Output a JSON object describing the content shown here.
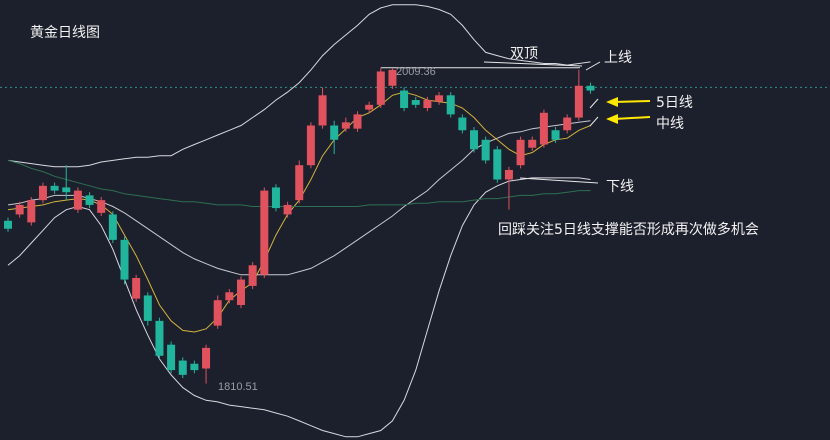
{
  "chart_data": {
    "type": "candlestick",
    "title": "黄金日线图",
    "annotations": {
      "double_top": "双顶",
      "note": "回踩关注5日线支撑能否形成再次做多机会"
    },
    "up_color": "#e0525e",
    "down_color": "#22b59e",
    "ylim": [
      1775,
      2052
    ],
    "price_line": 1997,
    "candles": {
      "open": [
        1913,
        1917,
        1912,
        1926,
        1935,
        1934,
        1920,
        1929,
        1918,
        1917,
        1901,
        1864,
        1866,
        1850,
        1835,
        1825,
        1823,
        1820,
        1847,
        1863,
        1860,
        1872,
        1879,
        1934,
        1917,
        1926,
        1948,
        1973,
        1973,
        1971,
        1971,
        1983,
        1986,
        1998,
        1995,
        1989,
        1984,
        1988,
        1992,
        1978,
        1970,
        1964,
        1958,
        1939,
        1948,
        1959,
        1961,
        1970,
        1970,
        1978,
        1998
      ],
      "high": [
        1915,
        1925,
        1928,
        1937,
        1937,
        1948,
        1934,
        1931,
        1928,
        1919,
        1903,
        1879,
        1868,
        1852,
        1837,
        1827,
        1825,
        1835,
        1866,
        1870,
        1878,
        1887,
        1934,
        1936,
        1925,
        1951,
        1975,
        1997,
        1976,
        1978,
        1982,
        1988,
        2009.36,
        2009,
        1997,
        1991,
        1991,
        1994,
        1994,
        1980,
        1972,
        1966,
        1960,
        1947,
        1966,
        1966,
        1983,
        1972,
        1980,
        2008,
        2000
      ],
      "low": [
        1906,
        1915,
        1910,
        1924,
        1930,
        1926,
        1918,
        1921,
        1916,
        1899,
        1873,
        1862,
        1847,
        1826,
        1817,
        1814,
        1817,
        1810.51,
        1845,
        1861,
        1858,
        1870,
        1877,
        1919,
        1915,
        1924,
        1946,
        1971,
        1955,
        1969,
        1969,
        1981,
        1984,
        1996,
        1982,
        1984,
        1982,
        1986,
        1978,
        1968,
        1956,
        1949,
        1937,
        1920,
        1946,
        1957,
        1959,
        1962,
        1968,
        1976,
        1993
      ],
      "close": [
        1908,
        1923,
        1926,
        1935,
        1932,
        1931,
        1932,
        1923,
        1926,
        1901,
        1876,
        1877,
        1850,
        1828,
        1819,
        1816,
        1819,
        1833,
        1863,
        1868,
        1876,
        1885,
        1932,
        1921,
        1923,
        1948,
        1973,
        1992,
        1964,
        1975,
        1980,
        1986,
        2007,
        2008,
        1984,
        1986,
        1989,
        1992,
        1980,
        1970,
        1958,
        1951,
        1939,
        1945,
        1964,
        1964,
        1981,
        1964,
        1978,
        1998,
        1995
      ]
    },
    "series": [
      {
        "name": "上线",
        "color": "#d8d8e0",
        "values": [
          1951,
          1950,
          1949,
          1948,
          1947,
          1947,
          1947,
          1948,
          1950,
          1951,
          1952,
          1953,
          1953,
          1954,
          1954,
          1958,
          1961,
          1964,
          1967,
          1970,
          1973,
          1978,
          1983,
          1989,
          1994,
          2000,
          2008,
          2017,
          2024,
          2030,
          2036,
          2043,
          2047,
          2049,
          2049,
          2049,
          2048,
          2046,
          2043,
          2036,
          2027,
          2019,
          2017,
          2015,
          2014,
          2013,
          2012,
          2012,
          2011,
          2012,
          2013
        ]
      },
      {
        "name": "中线",
        "color": "#c8c8d0",
        "values": [
          1923,
          1924,
          1926,
          1927,
          1929,
          1929,
          1929,
          1927,
          1925,
          1922,
          1918,
          1913,
          1908,
          1903,
          1898,
          1893,
          1889,
          1886,
          1883,
          1881,
          1879,
          1879,
          1879,
          1879,
          1879,
          1881,
          1883,
          1887,
          1891,
          1896,
          1901,
          1906,
          1911,
          1916,
          1922,
          1927,
          1932,
          1939,
          1945,
          1951,
          1958,
          1962,
          1965,
          1968,
          1969,
          1971,
          1972,
          1973,
          1974,
          1975,
          1976
        ]
      },
      {
        "name": "下线",
        "color": "#d8d8e0",
        "values": [
          1885,
          1891,
          1899,
          1907,
          1915,
          1920,
          1922,
          1920,
          1910,
          1895,
          1876,
          1857,
          1841,
          1826,
          1816,
          1808,
          1803,
          1800,
          1799,
          1797,
          1796,
          1795,
          1794,
          1792,
          1790,
          1787,
          1784,
          1781,
          1779,
          1777,
          1777,
          1779,
          1781,
          1787,
          1800,
          1819,
          1844,
          1869,
          1891,
          1910,
          1923,
          1931,
          1935,
          1938,
          1939,
          1940,
          1940,
          1940,
          1940,
          1940,
          1939
        ]
      },
      {
        "name": "5日线",
        "color": "#d4b43c",
        "values": [
          1920,
          1921,
          1922,
          1923,
          1925,
          1926,
          1927,
          1926,
          1923,
          1917,
          1904,
          1891,
          1876,
          1860,
          1850,
          1844,
          1843,
          1845,
          1852,
          1863,
          1869,
          1874,
          1888,
          1904,
          1917,
          1926,
          1939,
          1954,
          1964,
          1971,
          1978,
          1981,
          1986,
          1992,
          1994,
          1992,
          1989,
          1988,
          1987,
          1984,
          1978,
          1970,
          1964,
          1958,
          1954,
          1956,
          1961,
          1964,
          1965,
          1970,
          1973
        ]
      },
      {
        "color": "#2f6f52",
        "values": [
          1951,
          1949,
          1946,
          1944,
          1941,
          1939,
          1937,
          1935,
          1933,
          1932,
          1930,
          1929,
          1928,
          1927,
          1926,
          1925,
          1925,
          1924,
          1923,
          1923,
          1923,
          1922,
          1922,
          1922,
          1922,
          1922,
          1922,
          1922,
          1922,
          1922,
          1922,
          1923,
          1923,
          1923,
          1923,
          1924,
          1924,
          1925,
          1925,
          1925,
          1926,
          1927,
          1927,
          1928,
          1929,
          1929,
          1930,
          1930,
          1931,
          1932,
          1932
        ]
      }
    ]
  }
}
